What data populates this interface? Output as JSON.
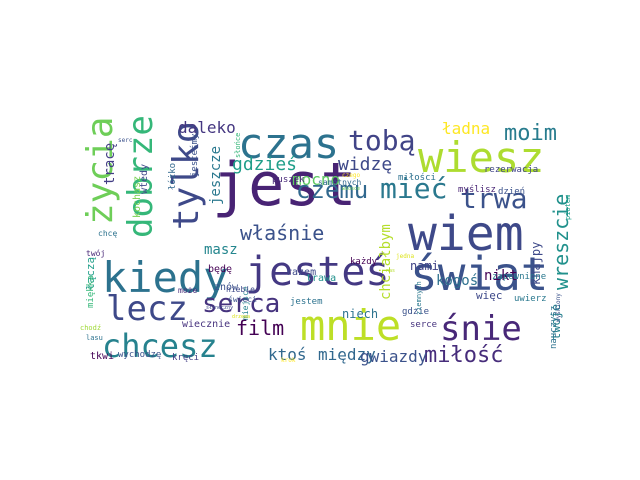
{
  "words": [
    {
      "text": "jest",
      "color": "#482374"
    },
    {
      "text": "wiem",
      "color": "#3e4989"
    },
    {
      "text": "świat",
      "color": "#3b528b"
    },
    {
      "text": "kiedy",
      "color": "#2c728e"
    },
    {
      "text": "mnie",
      "color": "#bddf26"
    },
    {
      "text": "czas",
      "color": "#2c728e"
    },
    {
      "text": "jesteś",
      "color": "#443983"
    },
    {
      "text": "wiesz",
      "color": "#addc30"
    },
    {
      "text": "lecz",
      "color": "#3e4989"
    },
    {
      "text": "tylko",
      "color": "#3e4989"
    },
    {
      "text": "życia",
      "color": "#6ece58"
    },
    {
      "text": "dobrze",
      "color": "#35b779"
    },
    {
      "text": "śnie",
      "color": "#482878"
    },
    {
      "text": "chcesz",
      "color": "#26828e"
    },
    {
      "text": "trwa",
      "color": "#3b528b"
    },
    {
      "text": "mieć",
      "color": "#2a788e"
    },
    {
      "text": "czemu",
      "color": "#31688e"
    },
    {
      "text": "tobą",
      "color": "#414487"
    },
    {
      "text": "serca",
      "color": "#46337e"
    },
    {
      "text": "miłość",
      "color": "#472d7b"
    },
    {
      "text": "moim",
      "color": "#287c8e"
    },
    {
      "text": "gdzieś",
      "color": "#1f9e89"
    },
    {
      "text": "właśnie",
      "color": "#3b528b"
    },
    {
      "text": "wreszcie",
      "color": "#21918c"
    },
    {
      "text": "film",
      "color": "#440154"
    },
    {
      "text": "widzę",
      "color": "#3e4989"
    },
    {
      "text": "mocno",
      "color": "#5ec962"
    },
    {
      "text": "ktoś",
      "color": "#31688e"
    },
    {
      "text": "między",
      "color": "#31688e"
    },
    {
      "text": "gwiazdy",
      "color": "#3b528b"
    },
    {
      "text": "daleko",
      "color": "#453781"
    },
    {
      "text": "ładna",
      "color": "#fde725"
    },
    {
      "text": "tracę",
      "color": "#433e85"
    },
    {
      "text": "masz",
      "color": "#24868e"
    },
    {
      "text": "jeszcze",
      "color": "#2a788e"
    },
    {
      "text": "chciałbym",
      "color": "#b5de2b"
    },
    {
      "text": "kogoś",
      "color": "#2d708e"
    },
    {
      "text": "nikt",
      "color": "#440154"
    },
    {
      "text": "nami",
      "color": "#414487"
    },
    {
      "text": "twoje",
      "color": "#26828e"
    },
    {
      "text": "knajpy",
      "color": "#3e4989"
    },
    {
      "text": "niech",
      "color": "#2c728e"
    },
    {
      "text": "wiecznie",
      "color": "#46327e"
    },
    {
      "text": "miłości",
      "color": "#2d708e"
    },
    {
      "text": "myślisz",
      "color": "#482475"
    },
    {
      "text": "dzień",
      "color": "#3b528b"
    },
    {
      "text": "rezerwacja",
      "color": "#404588"
    },
    {
      "text": "kochasz",
      "color": "#7ad151"
    },
    {
      "text": "wtedy",
      "color": "#3e4989"
    },
    {
      "text": "łóżko",
      "color": "#31688e"
    },
    {
      "text": "jesteśmy",
      "color": "#3b528b"
    },
    {
      "text": "będę",
      "color": "#440154"
    },
    {
      "text": "chcę",
      "color": "#2c728e"
    },
    {
      "text": "twój",
      "color": "#482878"
    },
    {
      "text": "łączą",
      "color": "#1f9e89"
    },
    {
      "text": "może",
      "color": "#472c7a"
    },
    {
      "text": "znów",
      "color": "#3b528b"
    },
    {
      "text": "razem",
      "color": "#3e4989"
    },
    {
      "text": "trawa",
      "color": "#21918c"
    },
    {
      "text": "każdy",
      "color": "#440154"
    },
    {
      "text": "gdzie",
      "color": "#3b528b"
    },
    {
      "text": "serce",
      "color": "#46337e"
    },
    {
      "text": "więc",
      "color": "#3e4989"
    },
    {
      "text": "uwierz",
      "color": "#2a788e"
    },
    {
      "text": "zapewnione",
      "color": "#2a788e"
    },
    {
      "text": "nauczysz",
      "color": "#2c728e"
    },
    {
      "text": "kręci",
      "color": "#433e85"
    },
    {
      "text": "wychodzę",
      "color": "#3b528b"
    },
    {
      "text": "tkwi",
      "color": "#440154"
    },
    {
      "text": "miękka",
      "color": "#35b779"
    },
    {
      "text": "puszek",
      "color": "#482878"
    },
    {
      "text": "samotnych",
      "color": "#31688e"
    },
    {
      "text": "jestem",
      "color": "#2c728e"
    },
    {
      "text": "miejsce",
      "color": "#26828e"
    },
    {
      "text": "świeci",
      "color": "#3b528b"
    },
    {
      "text": "niebie",
      "color": "#3e4989"
    },
    {
      "text": "ziemnych",
      "color": "#2a788e"
    },
    {
      "text": "piotem",
      "color": "#1f9e89"
    },
    {
      "text": "słońce",
      "color": "#35b779"
    },
    {
      "text": "serc",
      "color": "#3b528b"
    },
    {
      "text": "jedna",
      "color": "#dce319"
    },
    {
      "text": "czego",
      "color": "#fde725"
    },
    {
      "text": "wiosce",
      "color": "#6ece58"
    },
    {
      "text": "nas",
      "color": "#b5de2b"
    },
    {
      "text": "chodź",
      "color": "#a0da39"
    },
    {
      "text": "lasu",
      "color": "#2c728e"
    },
    {
      "text": "wyśniony",
      "color": "#3b528b"
    },
    {
      "text": "słoneczny",
      "color": "#3e4989"
    },
    {
      "text": "krok",
      "color": "#fde725"
    },
    {
      "text": "drzewa",
      "color": "#dce319"
    }
  ]
}
